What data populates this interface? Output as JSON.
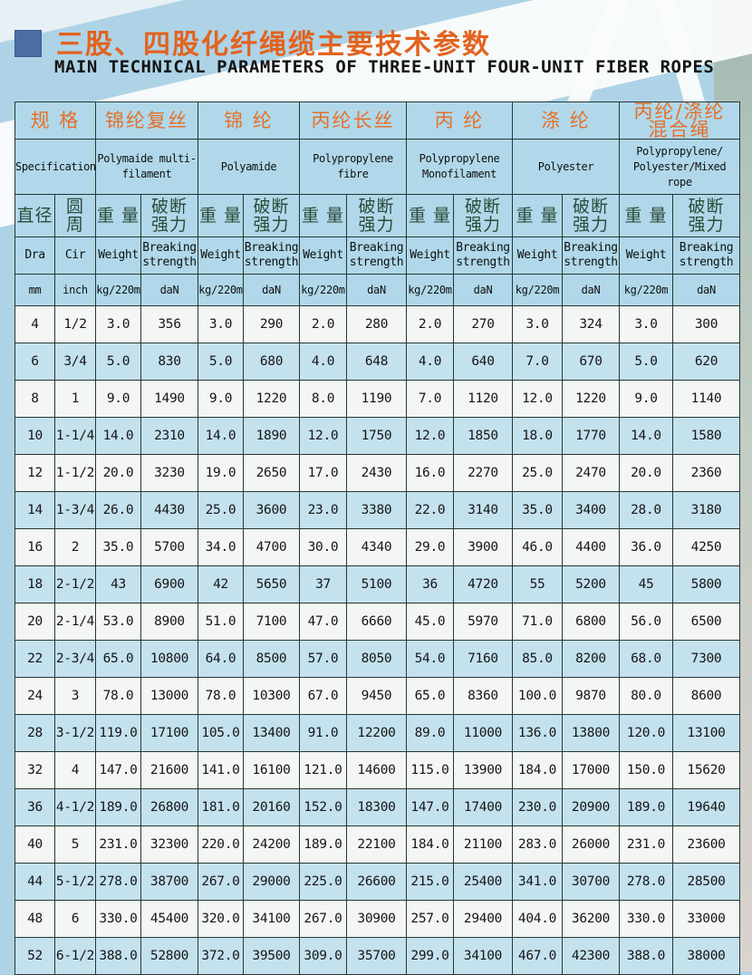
{
  "header": {
    "title_zh": "三股、四股化纤绳缆主要技术参数",
    "title_en": "MAIN TECHNICAL PARAMETERS OF THREE-UNIT FOUR-UNIT FIBER ROPES"
  },
  "table": {
    "spec": {
      "zh": "规 格",
      "en": "Specification"
    },
    "materials": [
      {
        "zh": "锦纶复丝",
        "en": "Polymaide multi-\nfilament"
      },
      {
        "zh": "锦 纶",
        "en": "Polyamide"
      },
      {
        "zh": "丙纶长丝",
        "en": "Polypropylene\nfibre"
      },
      {
        "zh": "丙 纶",
        "en": "Polypropylene\nMonofilament"
      },
      {
        "zh": "涤 纶",
        "en": "Polyester"
      },
      {
        "zh": "丙纶/涤纶\n混合绳",
        "en": "Polypropylene/\nPolyester/Mixed\nrope"
      }
    ],
    "sub": {
      "dia_zh": "直径",
      "dia_en": "Dra",
      "dia_unit": "mm",
      "cir_zh": "圆 周",
      "cir_en": "Cir",
      "cir_unit": "inch",
      "weight_zh": "重 量",
      "weight_en": "Weight",
      "weight_unit": "kg/220m",
      "strength_zh": "破断\n强力",
      "strength_en": "Breaking\nstrength",
      "strength_unit": "daN"
    },
    "rows": [
      [
        "4",
        "1/2",
        "3.0",
        "356",
        "3.0",
        "290",
        "2.0",
        "280",
        "2.0",
        "270",
        "3.0",
        "324",
        "3.0",
        "300"
      ],
      [
        "6",
        "3/4",
        "5.0",
        "830",
        "5.0",
        "680",
        "4.0",
        "648",
        "4.0",
        "640",
        "7.0",
        "670",
        "5.0",
        "620"
      ],
      [
        "8",
        "1",
        "9.0",
        "1490",
        "9.0",
        "1220",
        "8.0",
        "1190",
        "7.0",
        "1120",
        "12.0",
        "1220",
        "9.0",
        "1140"
      ],
      [
        "10",
        "1-1/4",
        "14.0",
        "2310",
        "14.0",
        "1890",
        "12.0",
        "1750",
        "12.0",
        "1850",
        "18.0",
        "1770",
        "14.0",
        "1580"
      ],
      [
        "12",
        "1-1/2",
        "20.0",
        "3230",
        "19.0",
        "2650",
        "17.0",
        "2430",
        "16.0",
        "2270",
        "25.0",
        "2470",
        "20.0",
        "2360"
      ],
      [
        "14",
        "1-3/4",
        "26.0",
        "4430",
        "25.0",
        "3600",
        "23.0",
        "3380",
        "22.0",
        "3140",
        "35.0",
        "3400",
        "28.0",
        "3180"
      ],
      [
        "16",
        "2",
        "35.0",
        "5700",
        "34.0",
        "4700",
        "30.0",
        "4340",
        "29.0",
        "3900",
        "46.0",
        "4400",
        "36.0",
        "4250"
      ],
      [
        "18",
        "2-1/2",
        "43",
        "6900",
        "42",
        "5650",
        "37",
        "5100",
        "36",
        "4720",
        "55",
        "5200",
        "45",
        "5800"
      ],
      [
        "20",
        "2-1/4",
        "53.0",
        "8900",
        "51.0",
        "7100",
        "47.0",
        "6660",
        "45.0",
        "5970",
        "71.0",
        "6800",
        "56.0",
        "6500"
      ],
      [
        "22",
        "2-3/4",
        "65.0",
        "10800",
        "64.0",
        "8500",
        "57.0",
        "8050",
        "54.0",
        "7160",
        "85.0",
        "8200",
        "68.0",
        "7300"
      ],
      [
        "24",
        "3",
        "78.0",
        "13000",
        "78.0",
        "10300",
        "67.0",
        "9450",
        "65.0",
        "8360",
        "100.0",
        "9870",
        "80.0",
        "8600"
      ],
      [
        "28",
        "3-1/2",
        "119.0",
        "17100",
        "105.0",
        "13400",
        "91.0",
        "12200",
        "89.0",
        "11000",
        "136.0",
        "13800",
        "120.0",
        "13100"
      ],
      [
        "32",
        "4",
        "147.0",
        "21600",
        "141.0",
        "16100",
        "121.0",
        "14600",
        "115.0",
        "13900",
        "184.0",
        "17000",
        "150.0",
        "15620"
      ],
      [
        "36",
        "4-1/2",
        "189.0",
        "26800",
        "181.0",
        "20160",
        "152.0",
        "18300",
        "147.0",
        "17400",
        "230.0",
        "20900",
        "189.0",
        "19640"
      ],
      [
        "40",
        "5",
        "231.0",
        "32300",
        "220.0",
        "24200",
        "189.0",
        "22100",
        "184.0",
        "21100",
        "283.0",
        "26000",
        "231.0",
        "23600"
      ],
      [
        "44",
        "5-1/2",
        "278.0",
        "38700",
        "267.0",
        "29000",
        "225.0",
        "26600",
        "215.0",
        "25400",
        "341.0",
        "30700",
        "278.0",
        "28500"
      ],
      [
        "48",
        "6",
        "330.0",
        "45400",
        "320.0",
        "34100",
        "267.0",
        "30900",
        "257.0",
        "29400",
        "404.0",
        "36200",
        "330.0",
        "33000"
      ],
      [
        "52",
        "6-1/2",
        "388.0",
        "52800",
        "372.0",
        "39500",
        "309.0",
        "35700",
        "299.0",
        "34100",
        "467.0",
        "42300",
        "388.0",
        "38000"
      ]
    ]
  },
  "colors": {
    "accent_orange": "#e66f28",
    "title_orange": "#e2631f",
    "square_blue": "#4a6da6",
    "header_cell_blue": "#b0d8ea",
    "stripe_row_blue": "#c4e1ee",
    "row_white": "#f4f6f3",
    "border_dark": "#273733",
    "border_orange": "#cd5f2e",
    "subheader_green": "#2c4a38",
    "page_blue": "#aed3e6"
  }
}
